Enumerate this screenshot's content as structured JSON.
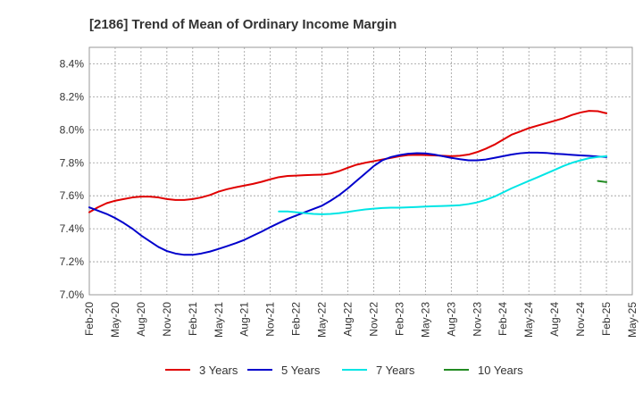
{
  "chart_data": {
    "type": "line",
    "title": "[2186]  Trend of Mean of Ordinary Income Margin",
    "xlabel": "",
    "ylabel": "",
    "x_ticks": [
      "Feb-20",
      "May-20",
      "Aug-20",
      "Nov-20",
      "Feb-21",
      "May-21",
      "Aug-21",
      "Nov-21",
      "Feb-22",
      "May-22",
      "Aug-22",
      "Nov-22",
      "Feb-23",
      "May-23",
      "Aug-23",
      "Nov-23",
      "Feb-24",
      "May-24",
      "Aug-24",
      "Nov-24",
      "Feb-25",
      "May-25"
    ],
    "y_ticks": [
      "7.0%",
      "7.2%",
      "7.4%",
      "7.6%",
      "7.8%",
      "8.0%",
      "8.2%",
      "8.4%"
    ],
    "ylim": [
      7.0,
      8.5
    ],
    "xlim_index": [
      0,
      21
    ],
    "grid": true,
    "legend_position": "bottom",
    "series": [
      {
        "name": "3 Years",
        "color": "#e00000",
        "x": [
          0,
          0.33,
          0.67,
          1,
          1.33,
          1.67,
          2,
          2.33,
          2.67,
          3,
          3.33,
          3.67,
          4,
          4.33,
          4.67,
          5,
          5.33,
          5.67,
          6,
          6.33,
          6.67,
          7,
          7.33,
          7.67,
          8,
          8.33,
          8.67,
          9,
          9.33,
          9.67,
          10,
          10.33,
          10.67,
          11,
          11.33,
          11.67,
          12,
          12.33,
          12.67,
          13,
          13.33,
          13.67,
          14,
          14.33,
          14.67,
          15,
          15.33,
          15.67,
          16,
          16.33,
          16.67,
          17,
          17.33,
          17.67,
          18,
          18.33,
          18.67,
          19,
          19.33,
          19.67,
          20
        ],
        "values": [
          7.5,
          7.53,
          7.555,
          7.57,
          7.58,
          7.59,
          7.595,
          7.595,
          7.59,
          7.58,
          7.575,
          7.575,
          7.58,
          7.59,
          7.605,
          7.625,
          7.64,
          7.652,
          7.662,
          7.672,
          7.685,
          7.7,
          7.713,
          7.72,
          7.722,
          7.725,
          7.727,
          7.728,
          7.735,
          7.75,
          7.77,
          7.788,
          7.8,
          7.81,
          7.82,
          7.83,
          7.84,
          7.847,
          7.848,
          7.847,
          7.845,
          7.843,
          7.84,
          7.843,
          7.85,
          7.865,
          7.885,
          7.91,
          7.94,
          7.97,
          7.99,
          8.01,
          8.025,
          8.04,
          8.055,
          8.07,
          8.09,
          8.105,
          8.115,
          8.113,
          8.1
        ]
      },
      {
        "name": "5 Years",
        "color": "#0000cc",
        "x": [
          0,
          0.33,
          0.67,
          1,
          1.33,
          1.67,
          2,
          2.33,
          2.67,
          3,
          3.33,
          3.67,
          4,
          4.33,
          4.67,
          5,
          5.33,
          5.67,
          6,
          6.33,
          6.67,
          7,
          7.33,
          7.67,
          8,
          8.33,
          8.67,
          9,
          9.33,
          9.67,
          10,
          10.33,
          10.67,
          11,
          11.33,
          11.67,
          12,
          12.33,
          12.67,
          13,
          13.33,
          13.67,
          14,
          14.33,
          14.67,
          15,
          15.33,
          15.67,
          16,
          16.33,
          16.67,
          17,
          17.33,
          17.67,
          18,
          18.33,
          18.67,
          19,
          19.33,
          19.67,
          20
        ],
        "values": [
          7.53,
          7.51,
          7.49,
          7.465,
          7.435,
          7.4,
          7.36,
          7.325,
          7.29,
          7.265,
          7.25,
          7.242,
          7.242,
          7.25,
          7.262,
          7.278,
          7.295,
          7.313,
          7.333,
          7.358,
          7.383,
          7.41,
          7.435,
          7.46,
          7.48,
          7.5,
          7.52,
          7.54,
          7.57,
          7.605,
          7.645,
          7.69,
          7.735,
          7.78,
          7.815,
          7.835,
          7.847,
          7.855,
          7.858,
          7.857,
          7.85,
          7.84,
          7.83,
          7.822,
          7.815,
          7.815,
          7.82,
          7.83,
          7.84,
          7.85,
          7.858,
          7.862,
          7.862,
          7.86,
          7.855,
          7.852,
          7.848,
          7.845,
          7.842,
          7.838,
          7.835
        ]
      },
      {
        "name": "7 Years",
        "color": "#00e5e5",
        "x": [
          7.33,
          7.67,
          8,
          8.33,
          8.67,
          9,
          9.33,
          9.67,
          10,
          10.33,
          10.67,
          11,
          11.33,
          11.67,
          12,
          12.33,
          12.67,
          13,
          13.33,
          13.67,
          14,
          14.33,
          14.67,
          15,
          15.33,
          15.67,
          16,
          16.33,
          16.67,
          17,
          17.33,
          17.67,
          18,
          18.33,
          18.67,
          19,
          19.33,
          19.67,
          20
        ],
        "values": [
          7.505,
          7.505,
          7.5,
          7.495,
          7.49,
          7.488,
          7.49,
          7.495,
          7.502,
          7.51,
          7.517,
          7.522,
          7.526,
          7.528,
          7.528,
          7.53,
          7.532,
          7.535,
          7.537,
          7.538,
          7.54,
          7.543,
          7.55,
          7.56,
          7.575,
          7.595,
          7.62,
          7.645,
          7.668,
          7.69,
          7.712,
          7.735,
          7.757,
          7.78,
          7.8,
          7.815,
          7.828,
          7.835,
          7.84
        ]
      },
      {
        "name": "10 Years",
        "color": "#228b22",
        "x": [
          19.67,
          20
        ],
        "values": [
          7.69,
          7.683
        ]
      }
    ]
  }
}
